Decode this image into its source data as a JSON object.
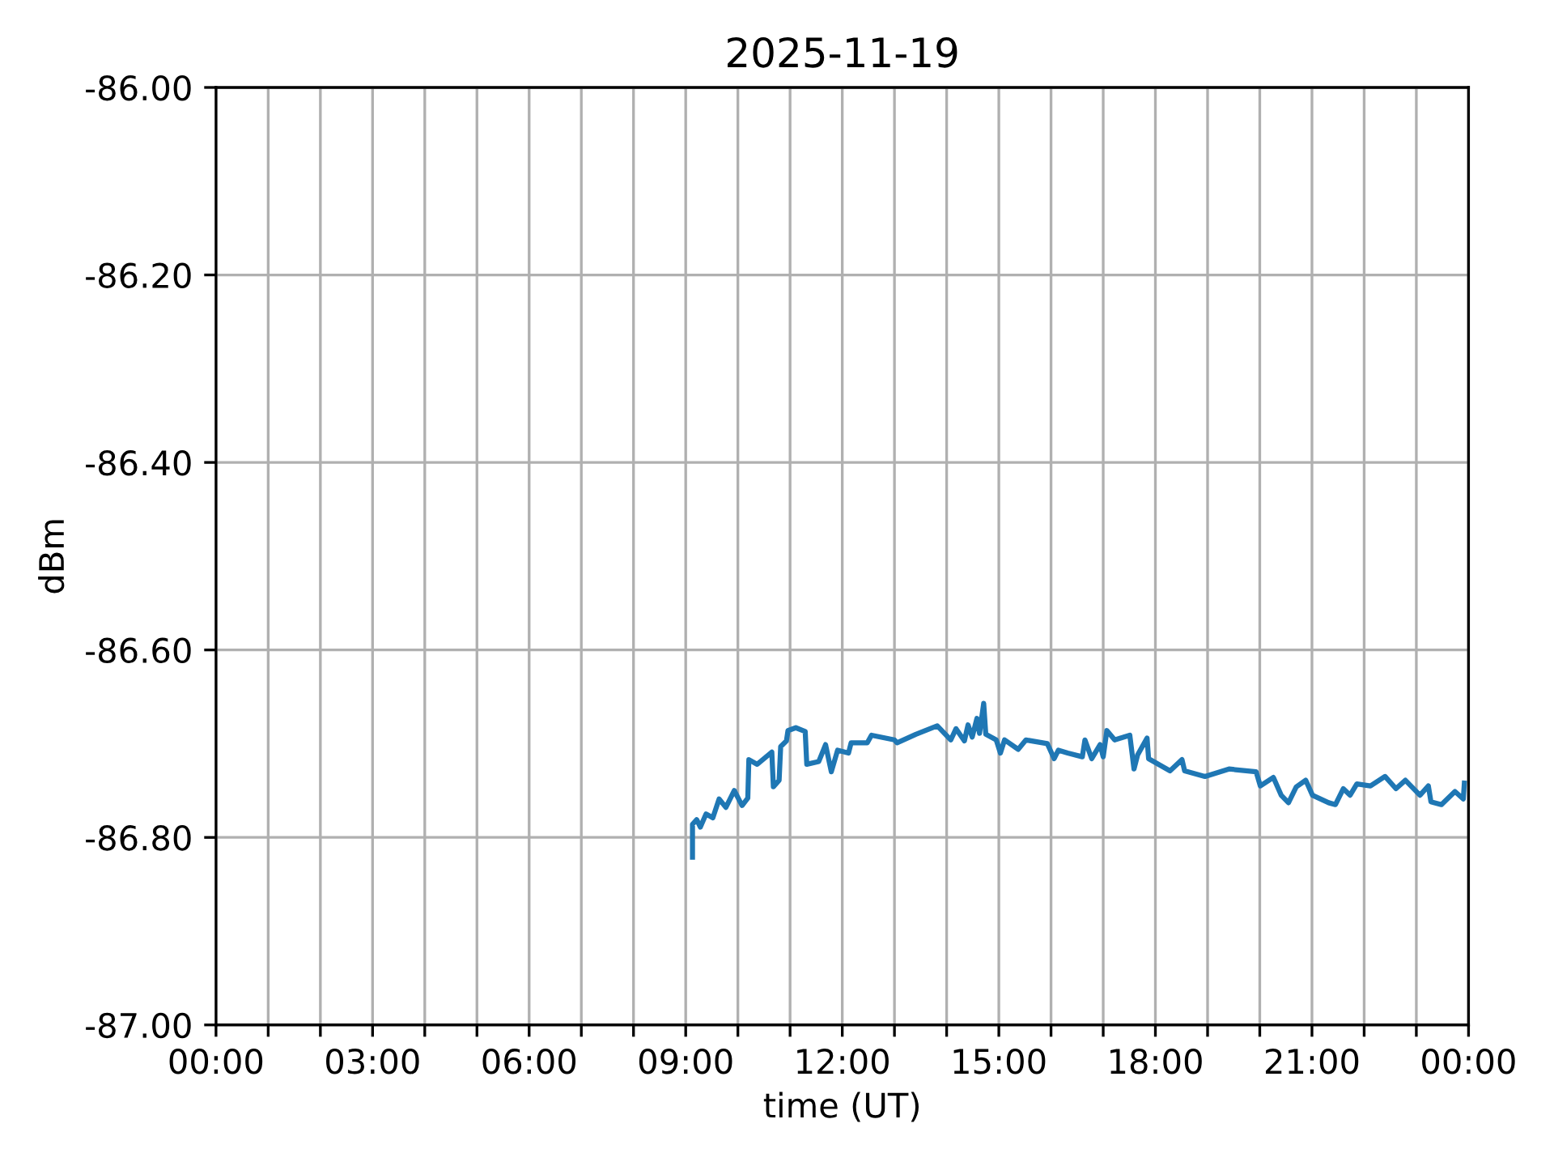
{
  "chart_data": {
    "type": "line",
    "title": "2025-11-19",
    "xlabel": "time (UT)",
    "ylabel": "dBm",
    "xlim": [
      0,
      24
    ],
    "ylim": [
      -87.0,
      -86.0
    ],
    "xticks": [
      {
        "value": 0,
        "label": "00:00"
      },
      {
        "value": 1,
        "label": null
      },
      {
        "value": 2,
        "label": null
      },
      {
        "value": 3,
        "label": "03:00"
      },
      {
        "value": 4,
        "label": null
      },
      {
        "value": 5,
        "label": null
      },
      {
        "value": 6,
        "label": "06:00"
      },
      {
        "value": 7,
        "label": null
      },
      {
        "value": 8,
        "label": null
      },
      {
        "value": 9,
        "label": "09:00"
      },
      {
        "value": 10,
        "label": null
      },
      {
        "value": 11,
        "label": null
      },
      {
        "value": 12,
        "label": "12:00"
      },
      {
        "value": 13,
        "label": null
      },
      {
        "value": 14,
        "label": null
      },
      {
        "value": 15,
        "label": "15:00"
      },
      {
        "value": 16,
        "label": null
      },
      {
        "value": 17,
        "label": null
      },
      {
        "value": 18,
        "label": "18:00"
      },
      {
        "value": 19,
        "label": null
      },
      {
        "value": 20,
        "label": null
      },
      {
        "value": 21,
        "label": "21:00"
      },
      {
        "value": 22,
        "label": null
      },
      {
        "value": 23,
        "label": null
      },
      {
        "value": 24,
        "label": "00:00"
      }
    ],
    "yticks": [
      {
        "value": -87.0,
        "label": "-87.00"
      },
      {
        "value": -86.8,
        "label": "-86.80"
      },
      {
        "value": -86.6,
        "label": "-86.60"
      },
      {
        "value": -86.4,
        "label": "-86.40"
      },
      {
        "value": -86.2,
        "label": "-86.20"
      },
      {
        "value": -86.0,
        "label": "-86.00"
      }
    ],
    "grid": true,
    "marker": "none",
    "line_style": "solid",
    "series": [
      {
        "color": "#1f77b4",
        "x": [
          9.13,
          9.13,
          9.21,
          9.28,
          9.39,
          9.52,
          9.64,
          9.77,
          9.93,
          10.08,
          10.19,
          10.21,
          10.37,
          10.65,
          10.68,
          10.79,
          10.82,
          10.93,
          10.96,
          11.11,
          11.29,
          11.32,
          11.55,
          11.68,
          11.79,
          11.91,
          12.12,
          12.17,
          12.48,
          12.56,
          13.0,
          13.05,
          13.41,
          13.82,
          14.08,
          14.18,
          14.34,
          14.41,
          14.49,
          14.58,
          14.63,
          14.71,
          14.75,
          14.95,
          15.03,
          15.11,
          15.37,
          15.52,
          15.93,
          16.06,
          16.14,
          16.32,
          16.6,
          16.65,
          16.78,
          16.94,
          17.0,
          17.07,
          17.22,
          17.51,
          17.59,
          17.66,
          17.84,
          17.87,
          18.28,
          18.51,
          18.56,
          18.95,
          19.41,
          19.93,
          20.01,
          20.26,
          20.41,
          20.55,
          20.7,
          20.88,
          21.01,
          21.32,
          21.45,
          21.6,
          21.73,
          21.86,
          22.12,
          22.4,
          22.61,
          22.79,
          23.07,
          23.23,
          23.28,
          23.48,
          23.74,
          23.9,
          23.92
        ],
        "values": [
          -86.821,
          -86.786,
          -86.781,
          -86.789,
          -86.775,
          -86.779,
          -86.759,
          -86.768,
          -86.75,
          -86.766,
          -86.758,
          -86.717,
          -86.722,
          -86.709,
          -86.746,
          -86.739,
          -86.703,
          -86.697,
          -86.686,
          -86.683,
          -86.687,
          -86.722,
          -86.719,
          -86.701,
          -86.73,
          -86.707,
          -86.71,
          -86.699,
          -86.699,
          -86.691,
          -86.696,
          -86.699,
          -86.69,
          -86.681,
          -86.696,
          -86.684,
          -86.697,
          -86.68,
          -86.693,
          -86.673,
          -86.689,
          -86.657,
          -86.69,
          -86.696,
          -86.71,
          -86.696,
          -86.706,
          -86.696,
          -86.7,
          -86.716,
          -86.707,
          -86.71,
          -86.714,
          -86.696,
          -86.716,
          -86.701,
          -86.714,
          -86.686,
          -86.696,
          -86.691,
          -86.727,
          -86.712,
          -86.694,
          -86.716,
          -86.729,
          -86.717,
          -86.729,
          -86.735,
          -86.727,
          -86.73,
          -86.745,
          -86.736,
          -86.755,
          -86.763,
          -86.746,
          -86.739,
          -86.755,
          -86.763,
          -86.765,
          -86.748,
          -86.755,
          -86.743,
          -86.745,
          -86.735,
          -86.748,
          -86.739,
          -86.755,
          -86.745,
          -86.762,
          -86.765,
          -86.751,
          -86.759,
          -86.742
        ]
      }
    ]
  }
}
